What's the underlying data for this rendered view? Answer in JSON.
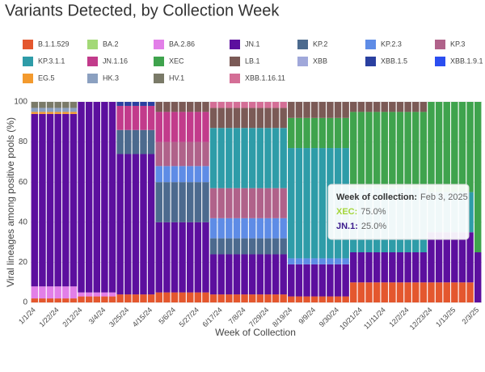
{
  "chart_data": {
    "type": "stacked_bar",
    "title": "Variants Detected, by Collection Week",
    "y_label": "Viral lineages among positive pools (%)",
    "x_label": "Week of Collection",
    "categories": [
      "1/1/24",
      null,
      null,
      "1/22/24",
      null,
      null,
      "2/12/24",
      null,
      null,
      "3/4/24",
      null,
      null,
      "3/25/24",
      null,
      null,
      "4/15/24",
      null,
      null,
      "5/6/24",
      null,
      null,
      "5/27/24",
      null,
      null,
      "6/17/24",
      null,
      null,
      "7/8/24",
      null,
      null,
      "7/29/24",
      null,
      null,
      "8/19/24",
      null,
      null,
      "9/9/24",
      null,
      null,
      "9/30/24",
      null,
      null,
      "10/21/24",
      null,
      null,
      "11/11/24",
      null,
      null,
      "12/2/24",
      null,
      null,
      "12/23/24",
      null,
      null,
      "1/13/25",
      null,
      null,
      "2/3/25"
    ],
    "ylim": [
      0,
      100
    ],
    "yticks": [
      0,
      20,
      40,
      60,
      80,
      100
    ],
    "grid": true,
    "series": [
      {
        "name": "B.1.1.529",
        "color": "#e4572e",
        "values": [
          2,
          2,
          2,
          2,
          2,
          2,
          3,
          3,
          3,
          3,
          3,
          4,
          4,
          4,
          4,
          4,
          5,
          5,
          5,
          5,
          5,
          5,
          5,
          4,
          4,
          4,
          4,
          4,
          4,
          4,
          4,
          4,
          4,
          3,
          3,
          3,
          3,
          3,
          3,
          3,
          3,
          10,
          10,
          10,
          10,
          10,
          10,
          10,
          10,
          10,
          10,
          10,
          10,
          10,
          10,
          10,
          10,
          0
        ]
      },
      {
        "name": "BA.2",
        "color": "#a3d977",
        "values": [
          0,
          0,
          0,
          0,
          0,
          0,
          0,
          0,
          0,
          0,
          0,
          0,
          0,
          0,
          0,
          0,
          0,
          0,
          0,
          0,
          0,
          0,
          0,
          0,
          0,
          0,
          0,
          0,
          0,
          0,
          0,
          0,
          0,
          0,
          0,
          0,
          0,
          0,
          0,
          0,
          0,
          0,
          0,
          0,
          0,
          0,
          0,
          0,
          0,
          0,
          0,
          0,
          0,
          0,
          0,
          0,
          0,
          0
        ]
      },
      {
        "name": "BA.2.86",
        "color": "#e27fe8",
        "values": [
          6,
          6,
          6,
          6,
          6,
          6,
          2,
          2,
          2,
          2,
          2,
          0,
          0,
          0,
          0,
          0,
          0,
          0,
          0,
          0,
          0,
          0,
          0,
          0,
          0,
          0,
          0,
          0,
          0,
          0,
          0,
          0,
          0,
          0,
          0,
          0,
          0,
          0,
          0,
          0,
          0,
          0,
          0,
          0,
          0,
          0,
          0,
          0,
          0,
          0,
          0,
          0,
          0,
          0,
          0,
          0,
          0,
          0
        ]
      },
      {
        "name": "JN.1",
        "color": "#5c0f9e",
        "values": [
          86,
          86,
          86,
          86,
          86,
          86,
          95,
          95,
          95,
          95,
          95,
          70,
          70,
          70,
          70,
          70,
          35,
          35,
          35,
          35,
          35,
          35,
          35,
          20,
          20,
          20,
          20,
          20,
          20,
          20,
          20,
          20,
          20,
          16,
          16,
          16,
          16,
          16,
          16,
          16,
          16,
          15,
          15,
          15,
          15,
          15,
          15,
          15,
          15,
          15,
          15,
          25,
          25,
          25,
          25,
          25,
          25,
          25
        ]
      },
      {
        "name": "KP.2",
        "color": "#4c6a8e",
        "values": [
          0,
          0,
          0,
          0,
          0,
          0,
          0,
          0,
          0,
          0,
          0,
          12,
          12,
          12,
          12,
          12,
          20,
          20,
          20,
          20,
          20,
          20,
          20,
          8,
          8,
          8,
          8,
          8,
          8,
          8,
          8,
          8,
          8,
          0,
          0,
          0,
          0,
          0,
          0,
          0,
          0,
          0,
          0,
          0,
          0,
          0,
          0,
          0,
          0,
          0,
          0,
          0,
          0,
          0,
          0,
          0,
          0,
          0
        ]
      },
      {
        "name": "KP.2.3",
        "color": "#5e8ce6",
        "values": [
          0,
          0,
          0,
          0,
          0,
          0,
          0,
          0,
          0,
          0,
          0,
          0,
          0,
          0,
          0,
          0,
          8,
          8,
          8,
          8,
          8,
          8,
          8,
          10,
          10,
          10,
          10,
          10,
          10,
          10,
          10,
          10,
          10,
          3,
          3,
          3,
          3,
          3,
          3,
          3,
          3,
          0,
          0,
          0,
          0,
          0,
          0,
          0,
          0,
          0,
          0,
          0,
          0,
          0,
          0,
          0,
          0,
          0
        ]
      },
      {
        "name": "KP.3",
        "color": "#b0628a",
        "values": [
          0,
          0,
          0,
          0,
          0,
          0,
          0,
          0,
          0,
          0,
          0,
          0,
          0,
          0,
          0,
          0,
          12,
          12,
          12,
          12,
          12,
          12,
          12,
          15,
          15,
          15,
          15,
          15,
          15,
          15,
          15,
          15,
          15,
          0,
          0,
          0,
          0,
          0,
          0,
          0,
          0,
          0,
          0,
          0,
          0,
          0,
          0,
          0,
          0,
          0,
          0,
          0,
          0,
          0,
          0,
          0,
          0,
          0
        ]
      },
      {
        "name": "KP.3.1.1",
        "color": "#2e9ca8",
        "values": [
          0,
          0,
          0,
          0,
          0,
          0,
          0,
          0,
          0,
          0,
          0,
          0,
          0,
          0,
          0,
          0,
          0,
          0,
          0,
          0,
          0,
          0,
          0,
          30,
          30,
          30,
          30,
          30,
          30,
          30,
          30,
          30,
          30,
          55,
          55,
          55,
          55,
          55,
          55,
          55,
          55,
          32,
          32,
          32,
          32,
          32,
          32,
          32,
          32,
          32,
          32,
          20,
          20,
          20,
          20,
          20,
          20,
          0
        ]
      },
      {
        "name": "JN.1.16",
        "color": "#c23b8b",
        "values": [
          0,
          0,
          0,
          0,
          0,
          0,
          0,
          0,
          0,
          0,
          0,
          12,
          12,
          12,
          12,
          12,
          15,
          15,
          15,
          15,
          15,
          15,
          15,
          0,
          0,
          0,
          0,
          0,
          0,
          0,
          0,
          0,
          0,
          0,
          0,
          0,
          0,
          0,
          0,
          0,
          0,
          0,
          0,
          0,
          0,
          0,
          0,
          0,
          0,
          0,
          0,
          0,
          0,
          0,
          0,
          0,
          0,
          0
        ]
      },
      {
        "name": "XEC",
        "color": "#3fa34d",
        "values": [
          0,
          0,
          0,
          0,
          0,
          0,
          0,
          0,
          0,
          0,
          0,
          0,
          0,
          0,
          0,
          0,
          0,
          0,
          0,
          0,
          0,
          0,
          0,
          0,
          0,
          0,
          0,
          0,
          0,
          0,
          0,
          0,
          0,
          15,
          15,
          15,
          15,
          15,
          15,
          15,
          15,
          38,
          38,
          38,
          38,
          38,
          38,
          38,
          38,
          38,
          38,
          45,
          45,
          45,
          45,
          45,
          45,
          75
        ]
      },
      {
        "name": "LB.1",
        "color": "#7b5a56",
        "values": [
          0,
          0,
          0,
          0,
          0,
          0,
          0,
          0,
          0,
          0,
          0,
          0,
          0,
          0,
          0,
          0,
          5,
          5,
          5,
          5,
          5,
          5,
          5,
          10,
          10,
          10,
          10,
          10,
          10,
          10,
          10,
          10,
          10,
          8,
          8,
          8,
          8,
          8,
          8,
          8,
          8,
          5,
          5,
          5,
          5,
          5,
          5,
          5,
          5,
          5,
          5,
          0,
          0,
          0,
          0,
          0,
          0,
          0
        ]
      },
      {
        "name": "XBB",
        "color": "#a0a8da",
        "values": [
          0,
          0,
          0,
          0,
          0,
          0,
          0,
          0,
          0,
          0,
          0,
          0,
          0,
          0,
          0,
          0,
          0,
          0,
          0,
          0,
          0,
          0,
          0,
          0,
          0,
          0,
          0,
          0,
          0,
          0,
          0,
          0,
          0,
          0,
          0,
          0,
          0,
          0,
          0,
          0,
          0,
          0,
          0,
          0,
          0,
          0,
          0,
          0,
          0,
          0,
          0,
          0,
          0,
          0,
          0,
          0,
          0,
          0
        ]
      },
      {
        "name": "XBB.1.5",
        "color": "#2a40a0",
        "values": [
          0,
          0,
          0,
          0,
          0,
          0,
          0,
          0,
          0,
          0,
          0,
          2,
          2,
          2,
          2,
          2,
          0,
          0,
          0,
          0,
          0,
          0,
          0,
          0,
          0,
          0,
          0,
          0,
          0,
          0,
          0,
          0,
          0,
          0,
          0,
          0,
          0,
          0,
          0,
          0,
          0,
          0,
          0,
          0,
          0,
          0,
          0,
          0,
          0,
          0,
          0,
          0,
          0,
          0,
          0,
          0,
          0,
          0
        ]
      },
      {
        "name": "XBB.1.9.1",
        "color": "#2b4ef0",
        "values": [
          0,
          0,
          0,
          0,
          0,
          0,
          0,
          0,
          0,
          0,
          0,
          0,
          0,
          0,
          0,
          0,
          0,
          0,
          0,
          0,
          0,
          0,
          0,
          0,
          0,
          0,
          0,
          0,
          0,
          0,
          0,
          0,
          0,
          0,
          0,
          0,
          0,
          0,
          0,
          0,
          0,
          0,
          0,
          0,
          0,
          0,
          0,
          0,
          0,
          0,
          0,
          0,
          0,
          0,
          0,
          0,
          0,
          0
        ]
      },
      {
        "name": "EG.5",
        "color": "#f39a2e",
        "values": [
          1,
          1,
          1,
          1,
          1,
          1,
          0,
          0,
          0,
          0,
          0,
          0,
          0,
          0,
          0,
          0,
          0,
          0,
          0,
          0,
          0,
          0,
          0,
          0,
          0,
          0,
          0,
          0,
          0,
          0,
          0,
          0,
          0,
          0,
          0,
          0,
          0,
          0,
          0,
          0,
          0,
          0,
          0,
          0,
          0,
          0,
          0,
          0,
          0,
          0,
          0,
          0,
          0,
          0,
          0,
          0,
          0,
          0
        ]
      },
      {
        "name": "HK.3",
        "color": "#8ba0c0",
        "values": [
          2,
          2,
          2,
          2,
          2,
          2,
          0,
          0,
          0,
          0,
          0,
          0,
          0,
          0,
          0,
          0,
          0,
          0,
          0,
          0,
          0,
          0,
          0,
          0,
          0,
          0,
          0,
          0,
          0,
          0,
          0,
          0,
          0,
          0,
          0,
          0,
          0,
          0,
          0,
          0,
          0,
          0,
          0,
          0,
          0,
          0,
          0,
          0,
          0,
          0,
          0,
          0,
          0,
          0,
          0,
          0,
          0,
          0
        ]
      },
      {
        "name": "HV.1",
        "color": "#7a7a68",
        "values": [
          3,
          3,
          3,
          3,
          3,
          3,
          0,
          0,
          0,
          0,
          0,
          0,
          0,
          0,
          0,
          0,
          0,
          0,
          0,
          0,
          0,
          0,
          0,
          0,
          0,
          0,
          0,
          0,
          0,
          0,
          0,
          0,
          0,
          0,
          0,
          0,
          0,
          0,
          0,
          0,
          0,
          0,
          0,
          0,
          0,
          0,
          0,
          0,
          0,
          0,
          0,
          0,
          0,
          0,
          0,
          0,
          0,
          0
        ]
      },
      {
        "name": "XBB.1.16.11",
        "color": "#d46e96",
        "values": [
          0,
          0,
          0,
          0,
          0,
          0,
          0,
          0,
          0,
          0,
          0,
          0,
          0,
          0,
          0,
          0,
          0,
          0,
          0,
          0,
          0,
          0,
          0,
          3,
          3,
          3,
          3,
          3,
          3,
          3,
          3,
          3,
          3,
          0,
          0,
          0,
          0,
          0,
          0,
          0,
          0,
          0,
          0,
          0,
          0,
          0,
          0,
          0,
          0,
          0,
          0,
          0,
          0,
          0,
          0,
          0,
          0,
          0
        ]
      }
    ],
    "tooltip": {
      "heading": "Week of collection:",
      "date": "Feb 3, 2025",
      "rows": [
        {
          "name": "XEC:",
          "value": "75.0%",
          "color": "#a5d63a"
        },
        {
          "name": "JN.1:",
          "value": "25.0%",
          "color": "#3b1a8c"
        }
      ]
    }
  }
}
